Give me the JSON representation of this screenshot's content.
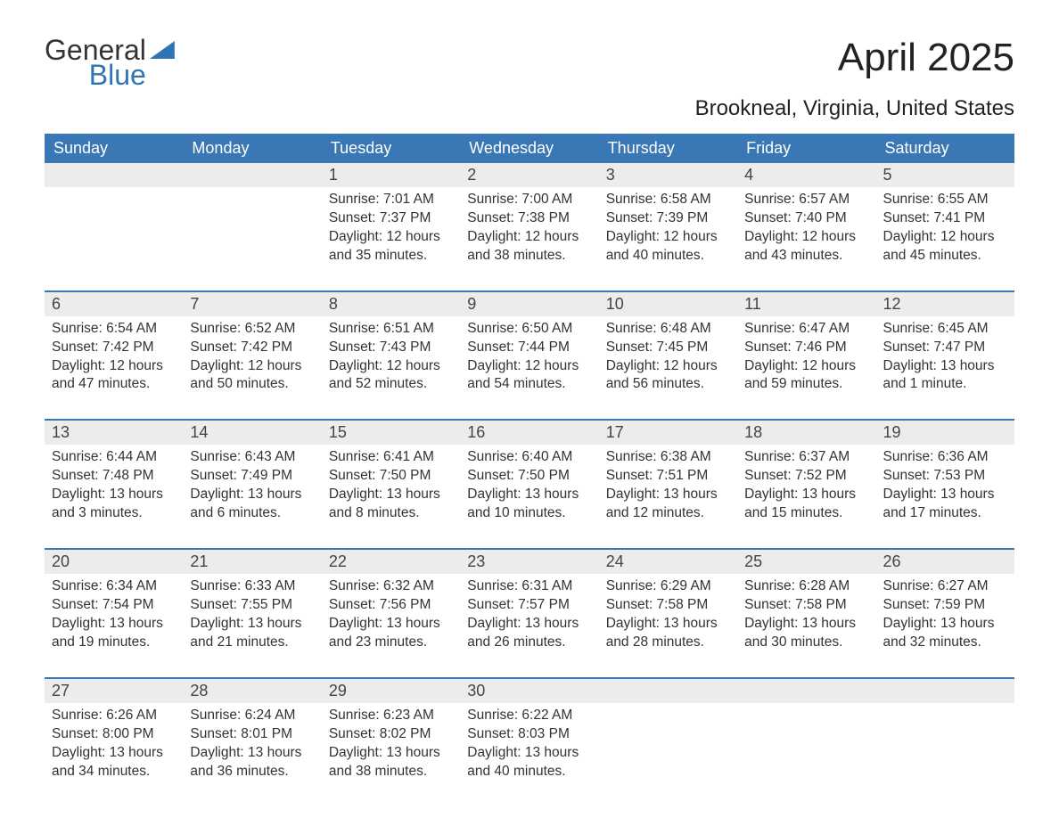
{
  "logo": {
    "word1": "General",
    "word2": "Blue"
  },
  "title": "April 2025",
  "location": "Brookneal, Virginia, United States",
  "colors": {
    "header_bg": "#3a78b5",
    "header_text": "#ffffff",
    "daynum_bg": "#ececec",
    "border": "#3a78b5",
    "body_text": "#333333",
    "logo_blue": "#2f75b5",
    "page_bg": "#ffffff"
  },
  "typography": {
    "title_fontsize": 44,
    "location_fontsize": 24,
    "dayheader_fontsize": 18,
    "daynum_fontsize": 18,
    "cell_fontsize": 15.5
  },
  "day_headers": [
    "Sunday",
    "Monday",
    "Tuesday",
    "Wednesday",
    "Thursday",
    "Friday",
    "Saturday"
  ],
  "weeks": [
    [
      null,
      null,
      {
        "n": "1",
        "sunrise": "7:01 AM",
        "sunset": "7:37 PM",
        "daylight": "12 hours and 35 minutes."
      },
      {
        "n": "2",
        "sunrise": "7:00 AM",
        "sunset": "7:38 PM",
        "daylight": "12 hours and 38 minutes."
      },
      {
        "n": "3",
        "sunrise": "6:58 AM",
        "sunset": "7:39 PM",
        "daylight": "12 hours and 40 minutes."
      },
      {
        "n": "4",
        "sunrise": "6:57 AM",
        "sunset": "7:40 PM",
        "daylight": "12 hours and 43 minutes."
      },
      {
        "n": "5",
        "sunrise": "6:55 AM",
        "sunset": "7:41 PM",
        "daylight": "12 hours and 45 minutes."
      }
    ],
    [
      {
        "n": "6",
        "sunrise": "6:54 AM",
        "sunset": "7:42 PM",
        "daylight": "12 hours and 47 minutes."
      },
      {
        "n": "7",
        "sunrise": "6:52 AM",
        "sunset": "7:42 PM",
        "daylight": "12 hours and 50 minutes."
      },
      {
        "n": "8",
        "sunrise": "6:51 AM",
        "sunset": "7:43 PM",
        "daylight": "12 hours and 52 minutes."
      },
      {
        "n": "9",
        "sunrise": "6:50 AM",
        "sunset": "7:44 PM",
        "daylight": "12 hours and 54 minutes."
      },
      {
        "n": "10",
        "sunrise": "6:48 AM",
        "sunset": "7:45 PM",
        "daylight": "12 hours and 56 minutes."
      },
      {
        "n": "11",
        "sunrise": "6:47 AM",
        "sunset": "7:46 PM",
        "daylight": "12 hours and 59 minutes."
      },
      {
        "n": "12",
        "sunrise": "6:45 AM",
        "sunset": "7:47 PM",
        "daylight": "13 hours and 1 minute."
      }
    ],
    [
      {
        "n": "13",
        "sunrise": "6:44 AM",
        "sunset": "7:48 PM",
        "daylight": "13 hours and 3 minutes."
      },
      {
        "n": "14",
        "sunrise": "6:43 AM",
        "sunset": "7:49 PM",
        "daylight": "13 hours and 6 minutes."
      },
      {
        "n": "15",
        "sunrise": "6:41 AM",
        "sunset": "7:50 PM",
        "daylight": "13 hours and 8 minutes."
      },
      {
        "n": "16",
        "sunrise": "6:40 AM",
        "sunset": "7:50 PM",
        "daylight": "13 hours and 10 minutes."
      },
      {
        "n": "17",
        "sunrise": "6:38 AM",
        "sunset": "7:51 PM",
        "daylight": "13 hours and 12 minutes."
      },
      {
        "n": "18",
        "sunrise": "6:37 AM",
        "sunset": "7:52 PM",
        "daylight": "13 hours and 15 minutes."
      },
      {
        "n": "19",
        "sunrise": "6:36 AM",
        "sunset": "7:53 PM",
        "daylight": "13 hours and 17 minutes."
      }
    ],
    [
      {
        "n": "20",
        "sunrise": "6:34 AM",
        "sunset": "7:54 PM",
        "daylight": "13 hours and 19 minutes."
      },
      {
        "n": "21",
        "sunrise": "6:33 AM",
        "sunset": "7:55 PM",
        "daylight": "13 hours and 21 minutes."
      },
      {
        "n": "22",
        "sunrise": "6:32 AM",
        "sunset": "7:56 PM",
        "daylight": "13 hours and 23 minutes."
      },
      {
        "n": "23",
        "sunrise": "6:31 AM",
        "sunset": "7:57 PM",
        "daylight": "13 hours and 26 minutes."
      },
      {
        "n": "24",
        "sunrise": "6:29 AM",
        "sunset": "7:58 PM",
        "daylight": "13 hours and 28 minutes."
      },
      {
        "n": "25",
        "sunrise": "6:28 AM",
        "sunset": "7:58 PM",
        "daylight": "13 hours and 30 minutes."
      },
      {
        "n": "26",
        "sunrise": "6:27 AM",
        "sunset": "7:59 PM",
        "daylight": "13 hours and 32 minutes."
      }
    ],
    [
      {
        "n": "27",
        "sunrise": "6:26 AM",
        "sunset": "8:00 PM",
        "daylight": "13 hours and 34 minutes."
      },
      {
        "n": "28",
        "sunrise": "6:24 AM",
        "sunset": "8:01 PM",
        "daylight": "13 hours and 36 minutes."
      },
      {
        "n": "29",
        "sunrise": "6:23 AM",
        "sunset": "8:02 PM",
        "daylight": "13 hours and 38 minutes."
      },
      {
        "n": "30",
        "sunrise": "6:22 AM",
        "sunset": "8:03 PM",
        "daylight": "13 hours and 40 minutes."
      },
      null,
      null,
      null
    ]
  ],
  "labels": {
    "sunrise": "Sunrise: ",
    "sunset": "Sunset: ",
    "daylight": "Daylight: "
  }
}
